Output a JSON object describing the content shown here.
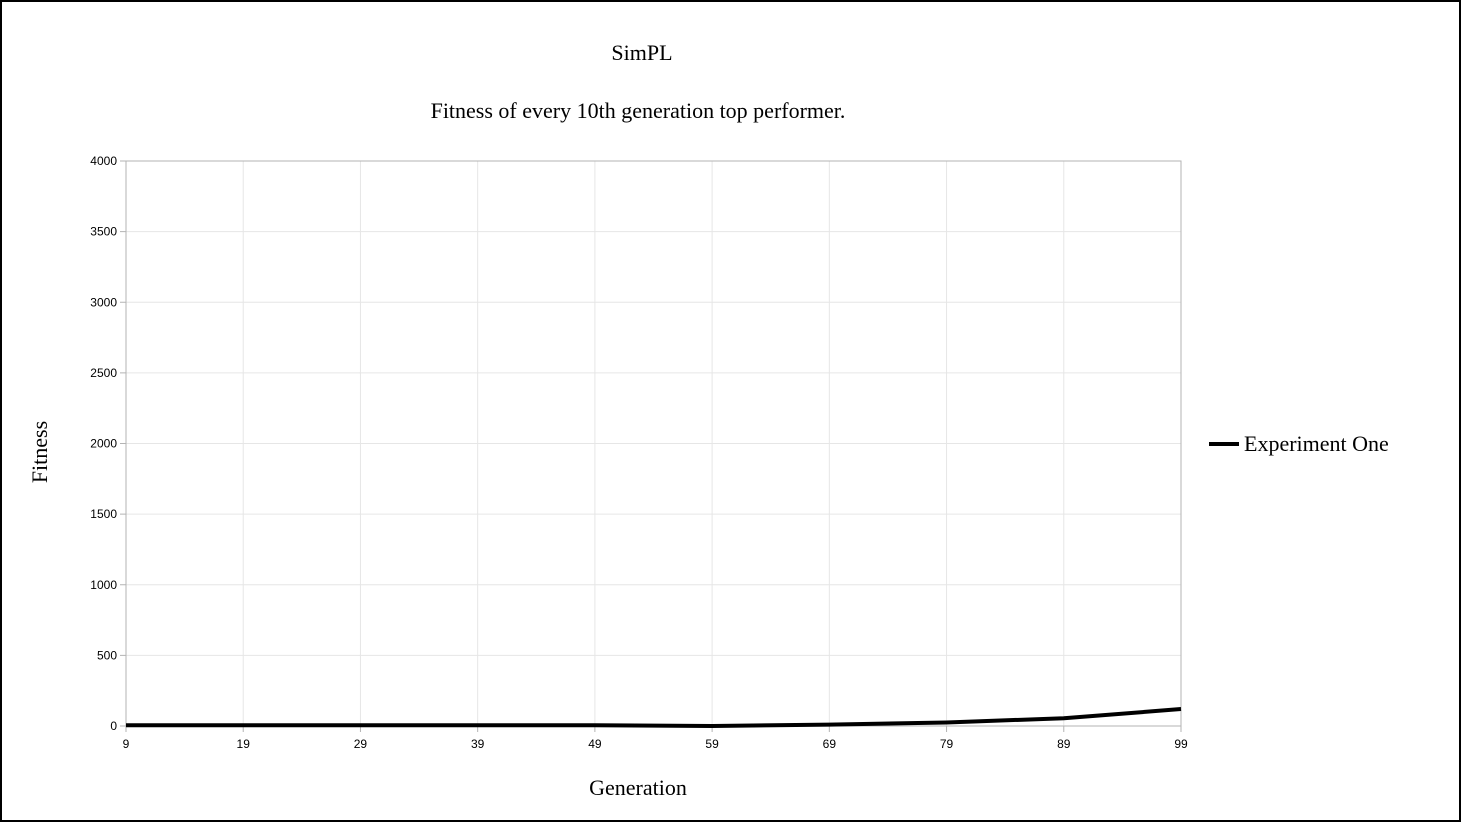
{
  "chart_data": {
    "type": "line",
    "title": "SimPL",
    "subtitle": "Fitness of every 10th generation top performer.",
    "xlabel": "Generation",
    "ylabel": "Fitness",
    "categories": [
      "9",
      "19",
      "29",
      "39",
      "49",
      "59",
      "69",
      "79",
      "89",
      "99"
    ],
    "series": [
      {
        "name": "Experiment One",
        "color": "#000000",
        "values": [
          5,
          5,
          5,
          5,
          5,
          0,
          10,
          25,
          55,
          120
        ]
      }
    ],
    "ylim": [
      0,
      4000
    ],
    "yticks": [
      "0",
      "500",
      "1000",
      "1500",
      "2000",
      "2500",
      "3000",
      "3500",
      "4000"
    ],
    "grid": true,
    "legend_position": "right"
  },
  "colors": {
    "grid": "#e6e6e6",
    "axis": "#b3b3b3",
    "series": "#000000"
  }
}
